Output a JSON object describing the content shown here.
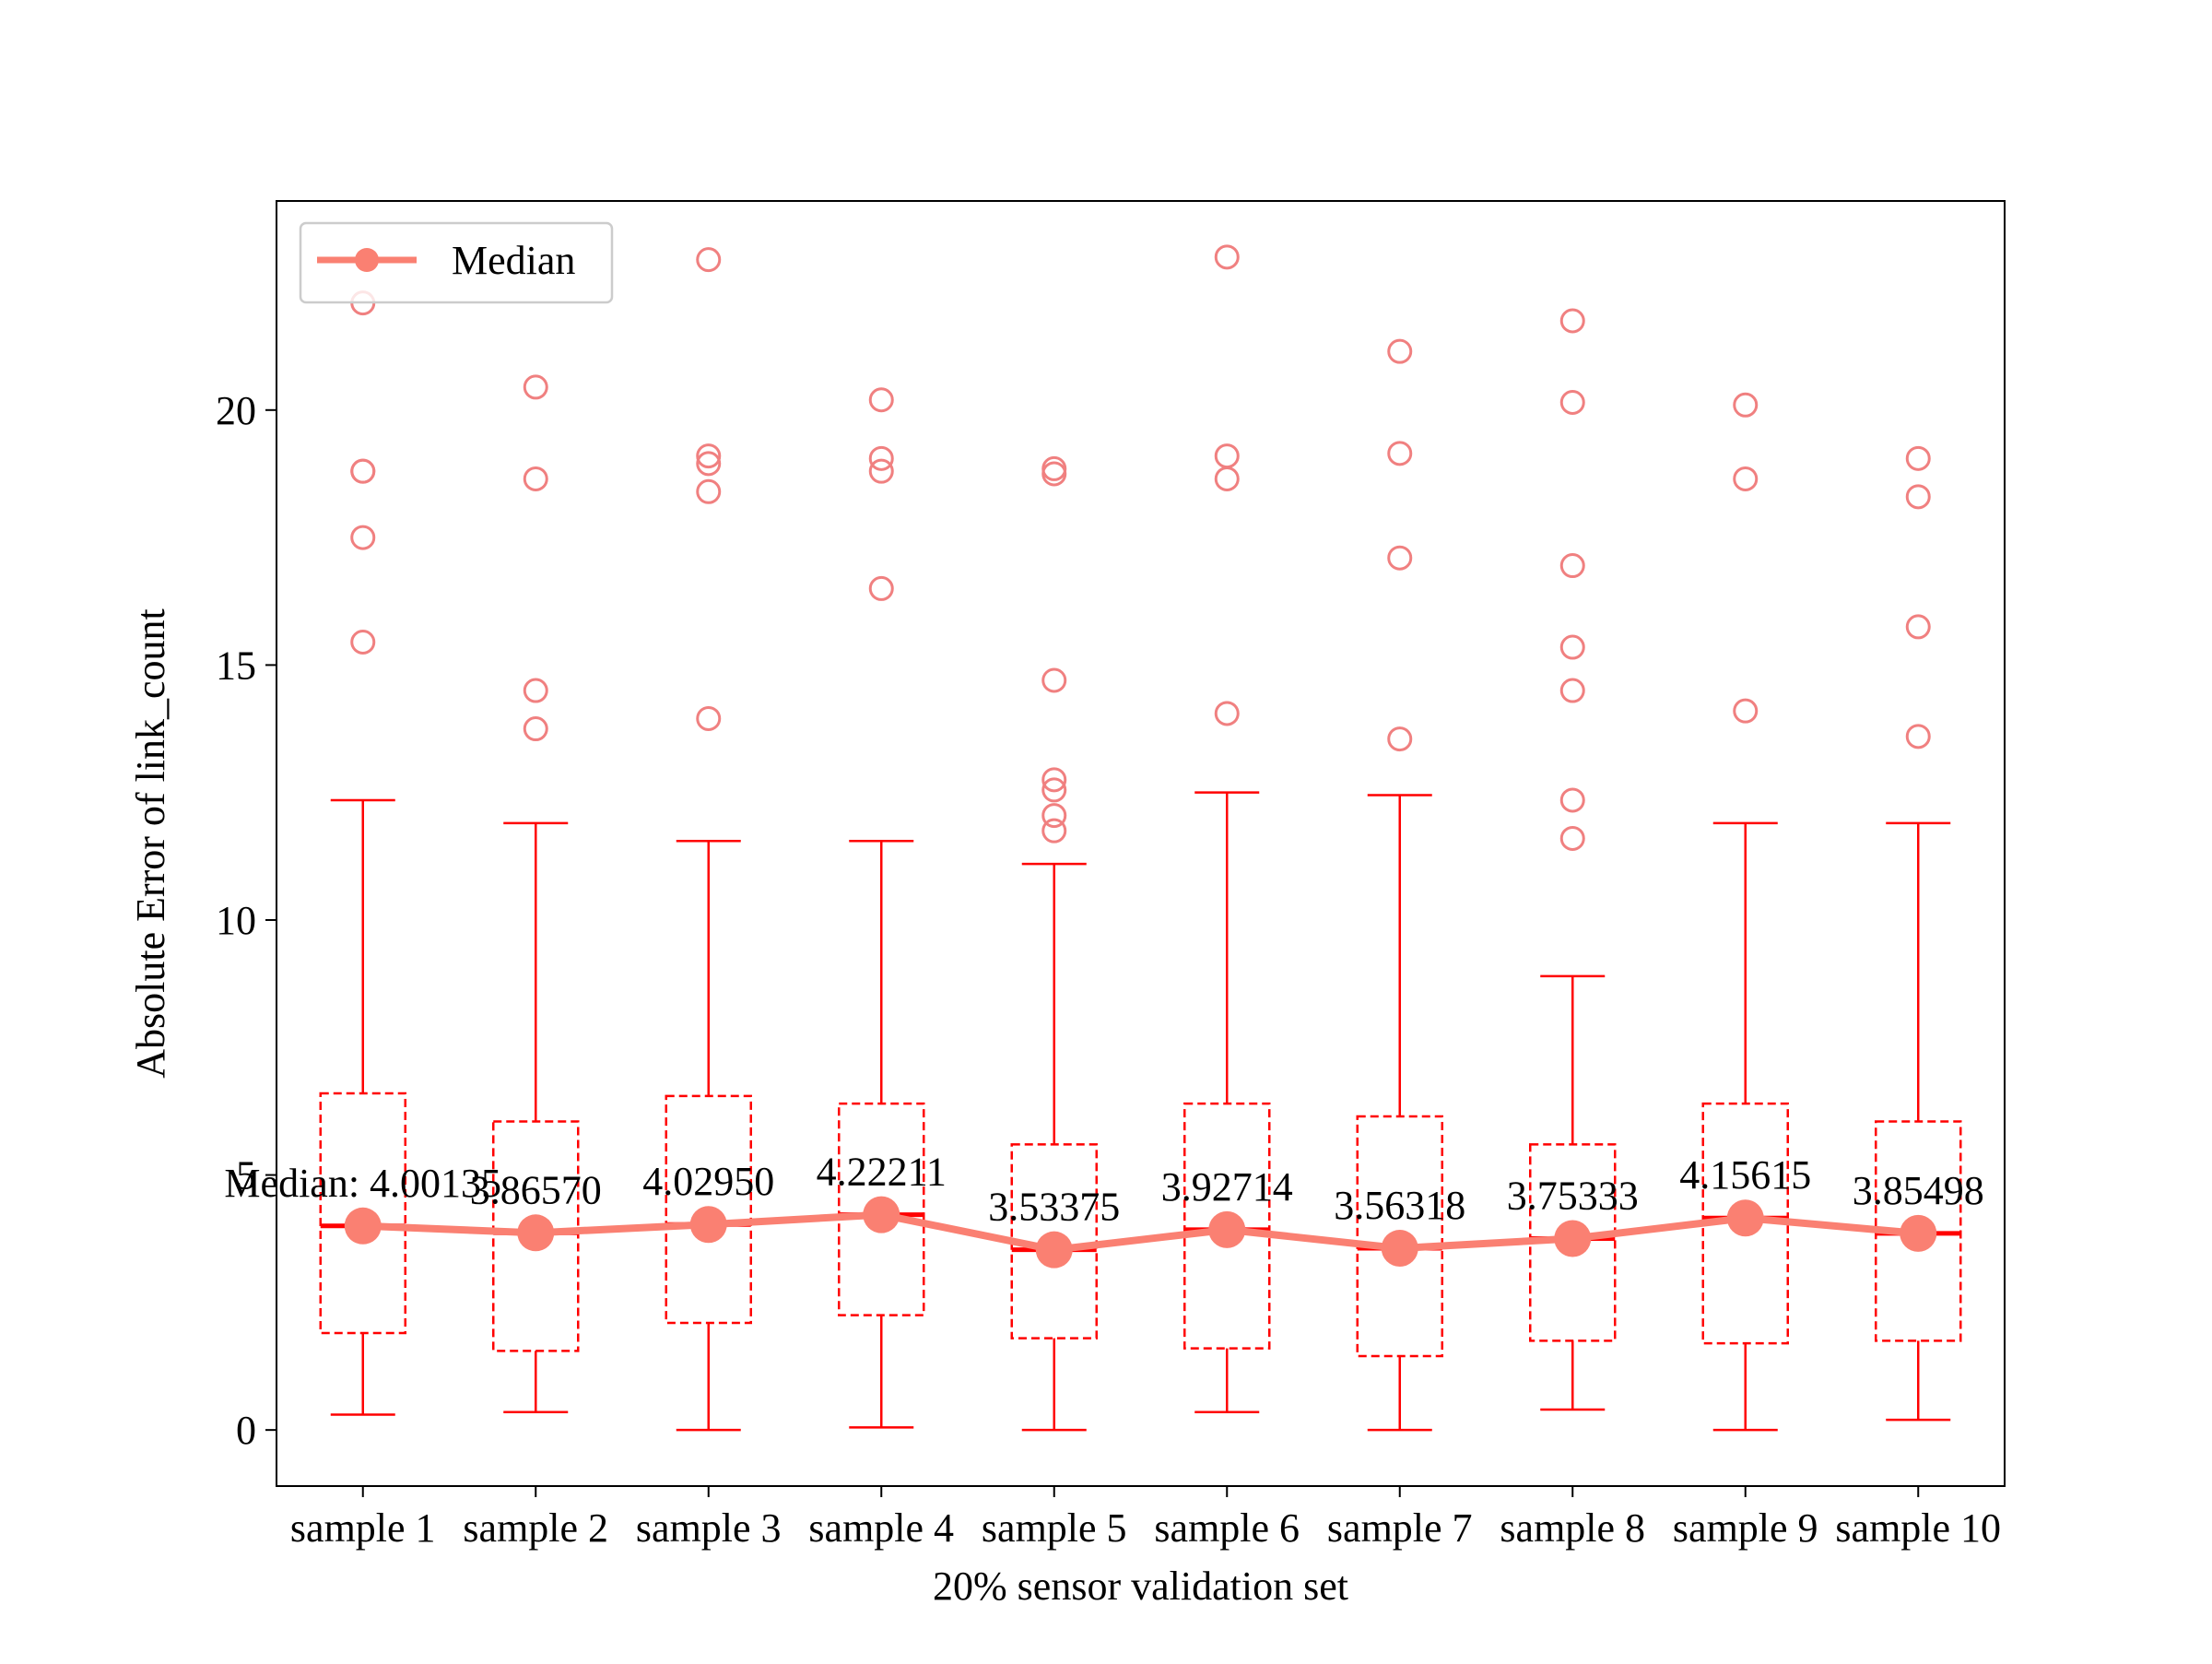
{
  "chart_data": {
    "type": "box",
    "xlabel": "20% sensor validation set",
    "ylabel": "Absolute Error of link_count",
    "categories": [
      "sample 1",
      "sample 2",
      "sample 3",
      "sample 4",
      "sample 5",
      "sample 6",
      "sample 7",
      "sample 8",
      "sample 9",
      "sample 10"
    ],
    "ylim": [
      -1.1,
      24.1
    ],
    "yticks": [
      0,
      5,
      10,
      15,
      20
    ],
    "grid": false,
    "legend": {
      "position": "top-left",
      "entries": [
        "Median"
      ]
    },
    "median_prefix": "Median: ",
    "median_labels": [
      "4.00135",
      "3.86570",
      "4.02950",
      "4.22211",
      "3.53375",
      "3.92714",
      "3.56318",
      "3.75333",
      "4.15615",
      "3.85498"
    ],
    "boxes": [
      {
        "whislo": 0.3,
        "q1": 1.9,
        "med": 4.00135,
        "q3": 6.6,
        "whishi": 12.35,
        "fliers": [
          22.1,
          18.8,
          18.8,
          17.5,
          15.45
        ]
      },
      {
        "whislo": 0.35,
        "q1": 1.55,
        "med": 3.8657,
        "q3": 6.05,
        "whishi": 11.9,
        "fliers": [
          20.45,
          18.65,
          14.5,
          13.75
        ]
      },
      {
        "whislo": 0.0,
        "q1": 2.1,
        "med": 4.0295,
        "q3": 6.55,
        "whishi": 11.55,
        "fliers": [
          22.95,
          19.1,
          18.95,
          18.4,
          13.95
        ]
      },
      {
        "whislo": 0.05,
        "q1": 2.25,
        "med": 4.22211,
        "q3": 6.4,
        "whishi": 11.55,
        "fliers": [
          20.2,
          19.05,
          18.8,
          16.5
        ]
      },
      {
        "whislo": 0.0,
        "q1": 1.8,
        "med": 3.53375,
        "q3": 5.6,
        "whishi": 11.1,
        "fliers": [
          18.85,
          18.75,
          14.7,
          12.75,
          12.55,
          12.05,
          11.75
        ]
      },
      {
        "whislo": 0.35,
        "q1": 1.6,
        "med": 3.92714,
        "q3": 6.4,
        "whishi": 12.5,
        "fliers": [
          23.0,
          19.1,
          18.65,
          14.05
        ]
      },
      {
        "whislo": 0.0,
        "q1": 1.45,
        "med": 3.56318,
        "q3": 6.15,
        "whishi": 12.45,
        "fliers": [
          21.15,
          19.15,
          17.1,
          13.55
        ]
      },
      {
        "whislo": 0.4,
        "q1": 1.75,
        "med": 3.75333,
        "q3": 5.6,
        "whishi": 8.9,
        "fliers": [
          21.75,
          20.15,
          16.95,
          15.35,
          14.5,
          12.35,
          11.6
        ]
      },
      {
        "whislo": 0.0,
        "q1": 1.7,
        "med": 4.15615,
        "q3": 6.4,
        "whishi": 11.9,
        "fliers": [
          20.1,
          18.65,
          14.1
        ]
      },
      {
        "whislo": 0.2,
        "q1": 1.75,
        "med": 3.85498,
        "q3": 6.05,
        "whishi": 11.9,
        "fliers": [
          19.05,
          18.3,
          15.75,
          13.6
        ]
      }
    ],
    "colors": {
      "box": "#ff0000",
      "median_line": "#fa8072",
      "flier": "#f08080"
    }
  }
}
